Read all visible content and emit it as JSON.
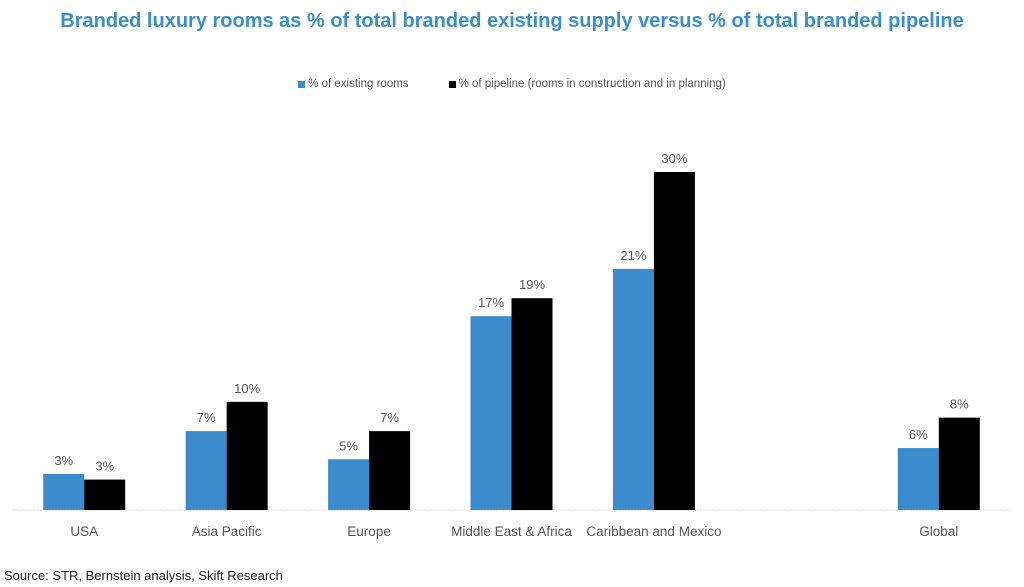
{
  "chart_data": {
    "type": "bar",
    "title": "Branded luxury rooms as % of total branded existing supply versus % of total branded pipeline",
    "categories": [
      "USA",
      "Asia Pacific",
      "Europe",
      "Middle East & Africa",
      "Caribbean and Mexico",
      "",
      "Global"
    ],
    "series": [
      {
        "name": "% of existing rooms",
        "color": "#3c8bcd",
        "values": [
          3.2,
          7.0,
          4.5,
          17.2,
          21.4,
          null,
          5.5
        ],
        "labels": [
          "3%",
          "7%",
          "5%",
          "17%",
          "21%",
          "",
          "6%"
        ]
      },
      {
        "name": "% of pipeline (rooms in construction and in planning)",
        "color": "#000000",
        "values": [
          2.7,
          9.6,
          7.0,
          18.8,
          30.0,
          null,
          8.2
        ],
        "labels": [
          "3%",
          "10%",
          "7%",
          "19%",
          "30%",
          "",
          "8%"
        ]
      }
    ],
    "xlabel": "",
    "ylabel": "",
    "ylim": [
      0,
      30
    ],
    "grid": false,
    "legend_position": "top-center",
    "source": "Source: STR, Bernstein analysis, Skift Research"
  }
}
